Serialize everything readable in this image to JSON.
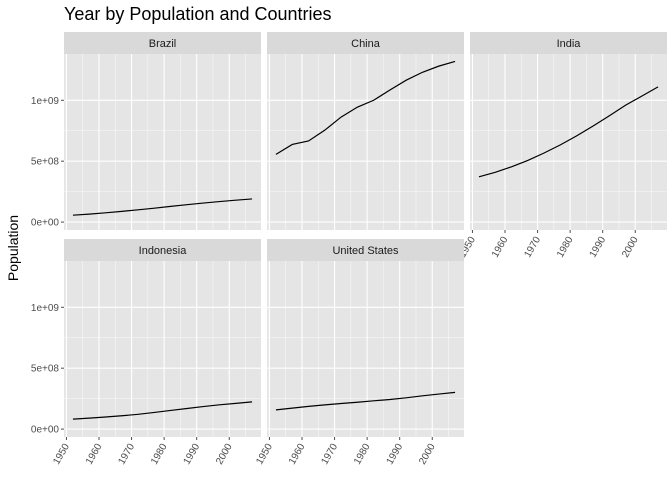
{
  "chart_data": {
    "type": "line",
    "title": "Year by Population and Countries",
    "xlabel": "",
    "ylabel": "Population",
    "facet_wrap": "country",
    "grid": true,
    "colors": {
      "panel_bg": "#e5e5e5",
      "strip_bg": "#d9d9d9",
      "gridline": "#ffffff",
      "line": "#000000",
      "tick": "#4d4d4d"
    },
    "xlim": [
      1949.25,
      2009.75
    ],
    "ylim": [
      -65000000,
      1380000000
    ],
    "x_ticks": [
      1950,
      1960,
      1970,
      1980,
      1990,
      2000
    ],
    "x_tick_labels": [
      "1950",
      "1960",
      "1970",
      "1980",
      "1990",
      "2000"
    ],
    "y_ticks": [
      0,
      500000000,
      1000000000
    ],
    "y_tick_labels": [
      "0e+00",
      "5e+08",
      "1e+09"
    ],
    "x": [
      1952,
      1957,
      1962,
      1967,
      1972,
      1977,
      1982,
      1987,
      1992,
      1997,
      2002,
      2007
    ],
    "series": [
      {
        "name": "Brazil",
        "values": [
          56602560,
          65551171,
          76039390,
          88049823,
          100840058,
          114313951,
          128962939,
          142938076,
          155975974,
          168546719,
          179914212,
          190010647
        ]
      },
      {
        "name": "China",
        "values": [
          556263527,
          637408000,
          665770000,
          754550000,
          862030000,
          943455000,
          1000281000,
          1084035000,
          1164970000,
          1230075000,
          1280400000,
          1318683096
        ]
      },
      {
        "name": "India",
        "values": [
          372000000,
          409000000,
          454000000,
          506000000,
          567000000,
          634000000,
          708000000,
          788000000,
          872000000,
          959000000,
          1034172547,
          1110396331
        ]
      },
      {
        "name": "Indonesia",
        "values": [
          82052000,
          90124000,
          99028000,
          109343000,
          121282000,
          136725000,
          153343000,
          169276000,
          184816000,
          199278000,
          211060000,
          223547000
        ]
      },
      {
        "name": "United States",
        "values": [
          157553000,
          171984000,
          186538000,
          198712000,
          209896000,
          220239000,
          232187835,
          242803533,
          256894189,
          272911760,
          287675526,
          301139947
        ]
      }
    ]
  }
}
